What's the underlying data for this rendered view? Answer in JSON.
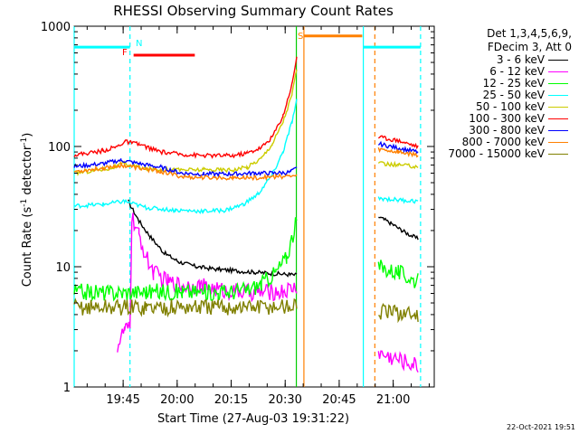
{
  "chart_data": {
    "type": "line",
    "title": "RHESSI Observing Summary Count Rates",
    "xlabel": "Start Time (27-Aug-03 19:31:22)",
    "ylabel_main": "Count Rate (s",
    "ylabel_sup1": "-1",
    "ylabel_mid": " detector",
    "ylabel_sup2": "-1",
    "ylabel_end": ")",
    "y_scale": "log",
    "ylim": [
      1,
      1000
    ],
    "y_ticks": [
      {
        "value": 1,
        "label": "1"
      },
      {
        "value": 10,
        "label": "10"
      },
      {
        "value": 100,
        "label": "100"
      },
      {
        "value": 1000,
        "label": "1000"
      }
    ],
    "xlim_minutes": [
      0,
      100
    ],
    "x_ticks": [
      {
        "minute": 13.6,
        "label": "19:45"
      },
      {
        "minute": 28.6,
        "label": "20:00"
      },
      {
        "minute": 43.6,
        "label": "20:15"
      },
      {
        "minute": 58.6,
        "label": "20:30"
      },
      {
        "minute": 73.6,
        "label": "20:45"
      },
      {
        "minute": 88.6,
        "label": "21:00"
      }
    ],
    "gaps_minutes": [
      [
        63.6,
        83.6
      ]
    ],
    "legend_header": [
      "Det 1,3,4,5,6,9,",
      "FDecim 3, Att 0"
    ],
    "series": [
      {
        "name": "3 - 6 keV",
        "color": "#000000",
        "points": [
          [
            0,
            null
          ],
          [
            15,
            35
          ],
          [
            18,
            24
          ],
          [
            21,
            18
          ],
          [
            25,
            13
          ],
          [
            29,
            11
          ],
          [
            34,
            10
          ],
          [
            40,
            9.5
          ],
          [
            50,
            9
          ],
          [
            60,
            8.6
          ],
          [
            61.8,
            8.5
          ],
          [
            83.6,
            null
          ],
          [
            84.5,
            26
          ],
          [
            88,
            23
          ],
          [
            91,
            20
          ],
          [
            95.5,
            17
          ]
        ]
      },
      {
        "name": "6 - 12 keV",
        "color": "#ff00ff",
        "points": [
          [
            0,
            null
          ],
          [
            12,
            2.2
          ],
          [
            14,
            3
          ],
          [
            15.5,
            3
          ],
          [
            16,
            26
          ],
          [
            18,
            18
          ],
          [
            20,
            12
          ],
          [
            22,
            9
          ],
          [
            26,
            7.5
          ],
          [
            30,
            7
          ],
          [
            35,
            6.9
          ],
          [
            42,
            6.3
          ],
          [
            50,
            6.1
          ],
          [
            58,
            6.2
          ],
          [
            61.8,
            6.8
          ],
          [
            83.6,
            null
          ],
          [
            84.5,
            1.9
          ],
          [
            95.5,
            1.5
          ]
        ]
      },
      {
        "name": "12 - 25 keV",
        "color": "#00ff00",
        "points": [
          [
            0,
            6.2
          ],
          [
            10,
            6.1
          ],
          [
            20,
            6.2
          ],
          [
            30,
            6.2
          ],
          [
            40,
            6.1
          ],
          [
            48,
            6.4
          ],
          [
            52,
            7.2
          ],
          [
            56,
            9
          ],
          [
            59,
            12
          ],
          [
            61.8,
            24
          ],
          [
            83.6,
            null
          ],
          [
            84.5,
            10
          ],
          [
            90,
            9
          ],
          [
            95.5,
            7.5
          ]
        ]
      },
      {
        "name": "25 - 50 keV",
        "color": "#00ffff",
        "points": [
          [
            0,
            32
          ],
          [
            8,
            33
          ],
          [
            14,
            35
          ],
          [
            20,
            31
          ],
          [
            28,
            29.5
          ],
          [
            36,
            29
          ],
          [
            42,
            29.5
          ],
          [
            47,
            33
          ],
          [
            51,
            40
          ],
          [
            55,
            58
          ],
          [
            58,
            90
          ],
          [
            60.5,
            160
          ],
          [
            61.8,
            240
          ],
          [
            83.6,
            null
          ],
          [
            84.5,
            37
          ],
          [
            90,
            36
          ],
          [
            95.5,
            35
          ]
        ]
      },
      {
        "name": "50 - 100 keV",
        "color": "#cccc00",
        "points": [
          [
            0,
            60
          ],
          [
            10,
            66
          ],
          [
            14,
            72
          ],
          [
            20,
            65
          ],
          [
            28,
            64
          ],
          [
            36,
            64
          ],
          [
            44,
            64
          ],
          [
            48,
            67
          ],
          [
            52,
            80
          ],
          [
            55,
            105
          ],
          [
            58,
            160
          ],
          [
            60.5,
            270
          ],
          [
            61.8,
            450
          ],
          [
            83.6,
            null
          ],
          [
            84.5,
            72
          ],
          [
            90,
            70
          ],
          [
            95.5,
            68
          ]
        ]
      },
      {
        "name": "100 - 300 keV",
        "color": "#ff0000",
        "points": [
          [
            0,
            85
          ],
          [
            8,
            92
          ],
          [
            12,
            100
          ],
          [
            14,
            110
          ],
          [
            18,
            104
          ],
          [
            24,
            90
          ],
          [
            30,
            86
          ],
          [
            36,
            84
          ],
          [
            44,
            84
          ],
          [
            48,
            88
          ],
          [
            52,
            98
          ],
          [
            55,
            120
          ],
          [
            58,
            180
          ],
          [
            60.5,
            330
          ],
          [
            61.8,
            560
          ],
          [
            83.6,
            null
          ],
          [
            84.5,
            120
          ],
          [
            90,
            112
          ],
          [
            95.5,
            100
          ]
        ]
      },
      {
        "name": "300 - 800 keV",
        "color": "#0000ff",
        "points": [
          [
            0,
            68
          ],
          [
            8,
            72
          ],
          [
            13,
            77
          ],
          [
            18,
            72
          ],
          [
            24,
            67
          ],
          [
            30,
            60
          ],
          [
            36,
            59
          ],
          [
            44,
            59
          ],
          [
            50,
            60
          ],
          [
            56,
            60
          ],
          [
            60,
            61
          ],
          [
            61.8,
            66
          ],
          [
            83.6,
            null
          ],
          [
            84.5,
            105
          ],
          [
            90,
            97
          ],
          [
            95.5,
            90
          ]
        ]
      },
      {
        "name": "800 - 7000 keV",
        "color": "#ff8000",
        "points": [
          [
            0,
            62
          ],
          [
            8,
            66
          ],
          [
            13,
            70
          ],
          [
            18,
            66
          ],
          [
            24,
            62
          ],
          [
            30,
            56
          ],
          [
            36,
            55
          ],
          [
            44,
            55
          ],
          [
            50,
            55
          ],
          [
            56,
            56
          ],
          [
            61.8,
            57
          ],
          [
            83.6,
            null
          ],
          [
            84.5,
            95
          ],
          [
            90,
            90
          ],
          [
            95.5,
            85
          ]
        ]
      },
      {
        "name": "7000 - 15000 keV",
        "color": "#808000",
        "points": [
          [
            0,
            4.6
          ],
          [
            10,
            4.6
          ],
          [
            20,
            4.6
          ],
          [
            30,
            4.6
          ],
          [
            40,
            4.6
          ],
          [
            50,
            4.6
          ],
          [
            61.8,
            4.7
          ],
          [
            83.6,
            null
          ],
          [
            84.5,
            4.2
          ],
          [
            90,
            4.1
          ],
          [
            95.5,
            4.0
          ]
        ]
      }
    ],
    "annotations": [
      {
        "label": "N",
        "color": "#00ffff"
      },
      {
        "label": "F",
        "color": "#ff0000"
      },
      {
        "label": "S",
        "color": "#ff8000"
      }
    ],
    "flag_bars": [
      {
        "name": "night",
        "color": "#00ffff",
        "segments": [
          [
            0,
            15.5
          ],
          [
            80.3,
            96.2
          ]
        ],
        "level": 670
      },
      {
        "name": "flare",
        "color": "#ff0000",
        "segments": [
          [
            16.5,
            33.5
          ]
        ],
        "level": 575
      },
      {
        "name": "saa",
        "color": "#ff8000",
        "segments": [
          [
            63.8,
            80
          ]
        ],
        "level": 830
      }
    ],
    "flag_lines": [
      {
        "name": "night-edge-1",
        "color": "#00ffff",
        "minute": 0,
        "style": "solid"
      },
      {
        "name": "night-edge-2",
        "color": "#00ffff",
        "minute": 15.5,
        "style": "dashed"
      },
      {
        "name": "night-edge-3",
        "color": "#00ffff",
        "minute": 80.3,
        "style": "solid"
      },
      {
        "name": "night-edge-4",
        "color": "#00ffff",
        "minute": 96.2,
        "style": "dashed"
      },
      {
        "name": "saa-edge-1",
        "color": "#ff8000",
        "minute": 63.8,
        "style": "solid"
      },
      {
        "name": "saa-edge-2",
        "color": "#ff8000",
        "minute": 83.5,
        "style": "dashed"
      },
      {
        "name": "attn-edge",
        "color": "#00cc00",
        "minute": 61.7,
        "style": "solid"
      }
    ]
  },
  "timestamp": "22-Oct-2021 19:51"
}
